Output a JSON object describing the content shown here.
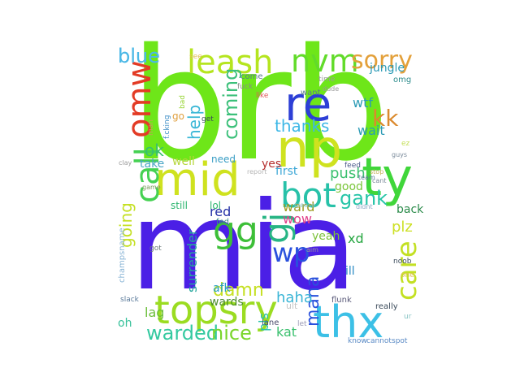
{
  "wordcloud": {
    "words": [
      {
        "text": "brb",
        "color": "#6ee619"
      },
      {
        "text": "mia",
        "color": "#4b1fe6"
      },
      {
        "text": "np",
        "color": "#cfe21f"
      },
      {
        "text": "mid",
        "color": "#cfe21f"
      },
      {
        "text": "re",
        "color": "#2d3fd6"
      },
      {
        "text": "ty",
        "color": "#40d63a"
      },
      {
        "text": "bot",
        "color": "#27c1a8"
      },
      {
        "text": "topsry",
        "color": "#9bdc21"
      },
      {
        "text": "thx",
        "color": "#3cc0e6"
      },
      {
        "text": "leash",
        "color": "#b5e51f"
      },
      {
        "text": "nvm",
        "color": "#62db2a"
      },
      {
        "text": "sorry",
        "color": "#e3a03a"
      },
      {
        "text": "omw",
        "color": "#e33b25"
      },
      {
        "text": "call",
        "color": "#45d152"
      },
      {
        "text": "gg",
        "color": "#3dbf38"
      },
      {
        "text": "gj",
        "color": "#27b584"
      },
      {
        "text": "wp",
        "color": "#2a51dd"
      },
      {
        "text": "care",
        "color": "#c3e023"
      },
      {
        "text": "kk",
        "color": "#db8a2e"
      },
      {
        "text": "thanks",
        "color": "#3cb7e6"
      },
      {
        "text": "coming",
        "color": "#3cc07a"
      },
      {
        "text": "gank",
        "color": "#27c5a8"
      },
      {
        "text": "mana",
        "color": "#2a51dd"
      },
      {
        "text": "warded",
        "color": "#34c9a0"
      },
      {
        "text": "nice",
        "color": "#7ad62a"
      },
      {
        "text": "blue",
        "color": "#4bb8e6"
      },
      {
        "text": "help",
        "color": "#3ab7d6"
      },
      {
        "text": "going",
        "color": "#c5e024"
      },
      {
        "text": "damn",
        "color": "#c6e024"
      },
      {
        "text": "surrender",
        "color": "#25a69c"
      },
      {
        "text": "haha",
        "color": "#3ab5d6"
      },
      {
        "text": "ward",
        "color": "#9b9b20"
      },
      {
        "text": "push",
        "color": "#3ac06e"
      },
      {
        "text": "ok",
        "color": "#3ac06e"
      },
      {
        "text": "wtf",
        "color": "#2b9ab5"
      },
      {
        "text": "wait",
        "color": "#2b9ab5"
      },
      {
        "text": "jungle",
        "color": "#2b9ab5"
      },
      {
        "text": "lag",
        "color": "#6bbe3a"
      },
      {
        "text": "red",
        "color": "#2430a6"
      },
      {
        "text": "wow",
        "color": "#e0408a"
      },
      {
        "text": "plz",
        "color": "#cde024"
      },
      {
        "text": "kat",
        "color": "#3ac06e"
      },
      {
        "text": "pls",
        "color": "#27c1a8"
      },
      {
        "text": "xd",
        "color": "#25a640"
      },
      {
        "text": "wards",
        "color": "#4b8c2b"
      },
      {
        "text": "afk",
        "color": "#27a1c5"
      },
      {
        "text": "ill",
        "color": "#2b8bc5"
      },
      {
        "text": "still",
        "color": "#2bb56e"
      },
      {
        "text": "lol",
        "color": "#2bb56e"
      },
      {
        "text": "back",
        "color": "#2b8b4a"
      },
      {
        "text": "oh",
        "color": "#37c19a"
      },
      {
        "text": "yeah",
        "color": "#7cc23a"
      },
      {
        "text": "take",
        "color": "#4ba6c5"
      },
      {
        "text": "well",
        "color": "#b5d63a"
      },
      {
        "text": "need",
        "color": "#3a9ec5"
      },
      {
        "text": "first",
        "color": "#3aa6d6"
      },
      {
        "text": "good",
        "color": "#7ac63a"
      },
      {
        "text": "yes",
        "color": "#b52e2e"
      },
      {
        "text": "come",
        "color": "#5a7a8a"
      },
      {
        "text": "want",
        "color": "#5a7a8a"
      },
      {
        "text": "blue",
        "color": "#4bb8e6"
      },
      {
        "text": "omg",
        "color": "#2b8b8b"
      },
      {
        "text": "go",
        "color": "#e0a040"
      },
      {
        "text": "man",
        "color": "#c5a05a"
      },
      {
        "text": "f.cking",
        "color": "#3a8bc5"
      },
      {
        "text": "fuck",
        "color": "#8a8a8a"
      },
      {
        "text": "bad",
        "color": "#9ad63a"
      },
      {
        "text": "get",
        "color": "#3a4a5a"
      },
      {
        "text": "like",
        "color": "#e05a5a"
      },
      {
        "text": "time",
        "color": "#9a9a9a"
      },
      {
        "text": "dude",
        "color": "#9a9a9a"
      },
      {
        "text": "see",
        "color": "#e0c05a"
      },
      {
        "text": "feed",
        "color": "#4a5a8a"
      },
      {
        "text": "team",
        "color": "#5a7a9a"
      },
      {
        "text": "stop",
        "color": "#c5b05a"
      },
      {
        "text": "cant",
        "color": "#7a8a9a"
      },
      {
        "text": "guys",
        "color": "#7a8a9a"
      },
      {
        "text": "ez",
        "color": "#c5e05a"
      },
      {
        "text": "didnt",
        "color": "#8aa6c5"
      },
      {
        "text": "please",
        "color": "#8ac5c5"
      },
      {
        "text": "report",
        "color": "#b5b5b5"
      },
      {
        "text": "game",
        "color": "#7a9a5a"
      },
      {
        "text": "clay",
        "color": "#9a9a9a"
      },
      {
        "text": "fed",
        "color": "#3a8b8b"
      },
      {
        "text": "got",
        "color": "#6a7a7a"
      },
      {
        "text": "noob",
        "color": "#3a4a5a"
      },
      {
        "text": "one",
        "color": "#e0c05a"
      },
      {
        "text": "really",
        "color": "#3a4a5a"
      },
      {
        "text": "ur",
        "color": "#8ac5c5"
      },
      {
        "text": "slack",
        "color": "#5a7a9a"
      },
      {
        "text": "ult",
        "color": "#c5c5c5"
      },
      {
        "text": "flunk",
        "color": "#5a5a7a"
      },
      {
        "text": "lane",
        "color": "#4a4a6a"
      },
      {
        "text": "let",
        "color": "#9a9ab5"
      },
      {
        "text": "know",
        "color": "#5a8ac5"
      },
      {
        "text": "cannot",
        "color": "#5a8ac5"
      },
      {
        "text": "spot",
        "color": "#5a8ac5"
      },
      {
        "text": "champsname",
        "color": "#8ab5d6"
      },
      {
        "text": "aim",
        "color": "#9a9a9a"
      }
    ]
  }
}
